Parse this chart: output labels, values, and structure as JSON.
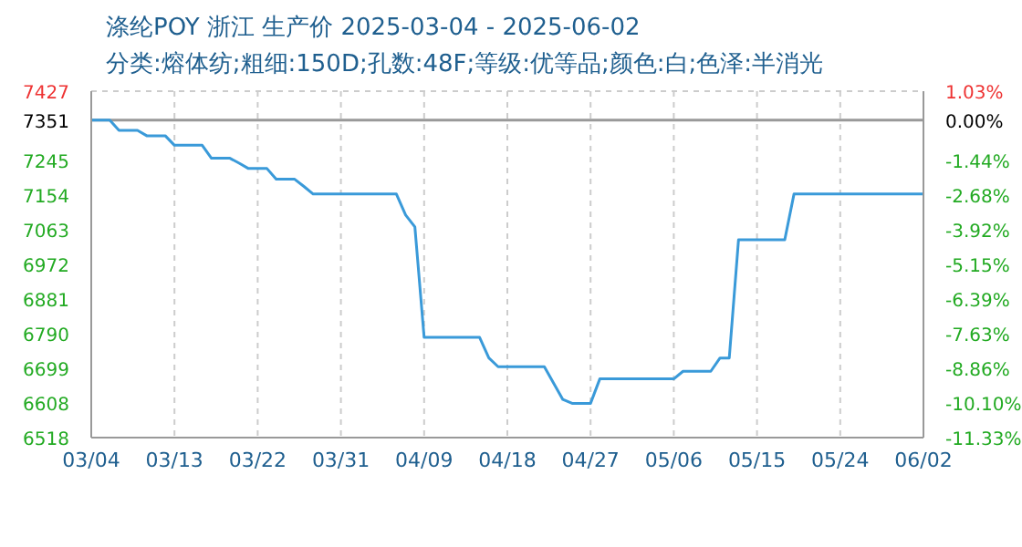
{
  "chart_data": {
    "type": "line",
    "title": "涤纶POY 浙江 生产价 2025-03-04 - 2025-06-02",
    "subtitle": "分类:熔体纺;粗细:150D;孔数:48F;等级:优等品;颜色:白;色泽:半消光",
    "x": [
      "2025-03-04",
      "2025-03-06",
      "2025-03-07",
      "2025-03-09",
      "2025-03-10",
      "2025-03-12",
      "2025-03-13",
      "2025-03-16",
      "2025-03-17",
      "2025-03-19",
      "2025-03-20",
      "2025-03-21",
      "2025-03-23",
      "2025-03-24",
      "2025-03-26",
      "2025-03-27",
      "2025-03-28",
      "2025-04-06",
      "2025-04-07",
      "2025-04-08",
      "2025-04-09",
      "2025-04-15",
      "2025-04-16",
      "2025-04-17",
      "2025-04-22",
      "2025-04-24",
      "2025-04-25",
      "2025-04-27",
      "2025-04-28",
      "2025-05-06",
      "2025-05-07",
      "2025-05-10",
      "2025-05-11",
      "2025-05-12",
      "2025-05-13",
      "2025-05-18",
      "2025-05-19",
      "2025-06-02"
    ],
    "series": [
      {
        "color": "#3a9ad9",
        "values": [
          7351,
          7351,
          7324,
          7324,
          7310,
          7310,
          7285,
          7285,
          7251,
          7251,
          7238,
          7224,
          7224,
          7196,
          7196,
          7177,
          7157,
          7157,
          7102,
          7071,
          6781,
          6781,
          6727,
          6704,
          6704,
          6618,
          6608,
          6608,
          6672,
          6672,
          6692,
          6692,
          6727,
          6727,
          7037,
          7037,
          7157,
          7157
        ]
      }
    ],
    "xlim": [
      "2025-03-04",
      "2025-06-02"
    ],
    "xticks": [
      {
        "value": "2025-03-04",
        "label": "03/04"
      },
      {
        "value": "2025-03-13",
        "label": "03/13"
      },
      {
        "value": "2025-03-22",
        "label": "03/22"
      },
      {
        "value": "2025-03-31",
        "label": "03/31"
      },
      {
        "value": "2025-04-09",
        "label": "04/09"
      },
      {
        "value": "2025-04-18",
        "label": "04/18"
      },
      {
        "value": "2025-04-27",
        "label": "04/27"
      },
      {
        "value": "2025-05-06",
        "label": "05/06"
      },
      {
        "value": "2025-05-15",
        "label": "05/15"
      },
      {
        "value": "2025-05-24",
        "label": "05/24"
      },
      {
        "value": "2025-06-02",
        "label": "06/02"
      }
    ],
    "ylim": [
      6518,
      7427
    ],
    "yticks": [
      6518,
      6608,
      6699,
      6790,
      6881,
      6972,
      7063,
      7154,
      7245,
      7351,
      7427
    ],
    "y2lim": [
      -11.33,
      1.03
    ],
    "y2ticks": [
      {
        "value": -11.33,
        "label": "-11.33%"
      },
      {
        "value": -10.1,
        "label": "-10.10%"
      },
      {
        "value": -8.86,
        "label": "-8.86%"
      },
      {
        "value": -7.63,
        "label": "-7.63%"
      },
      {
        "value": -6.39,
        "label": "-6.39%"
      },
      {
        "value": -5.15,
        "label": "-5.15%"
      },
      {
        "value": -3.92,
        "label": "-3.92%"
      },
      {
        "value": -2.68,
        "label": "-2.68%"
      },
      {
        "value": -1.44,
        "label": "-1.44%"
      },
      {
        "value": 0,
        "label": "0.00%"
      },
      {
        "value": 1.03,
        "label": "1.03%"
      }
    ],
    "ref_lines": [
      {
        "axis": "y",
        "value": 7351,
        "color": "#999999"
      }
    ],
    "grid": true,
    "marker": "none",
    "line_style": "solid"
  }
}
